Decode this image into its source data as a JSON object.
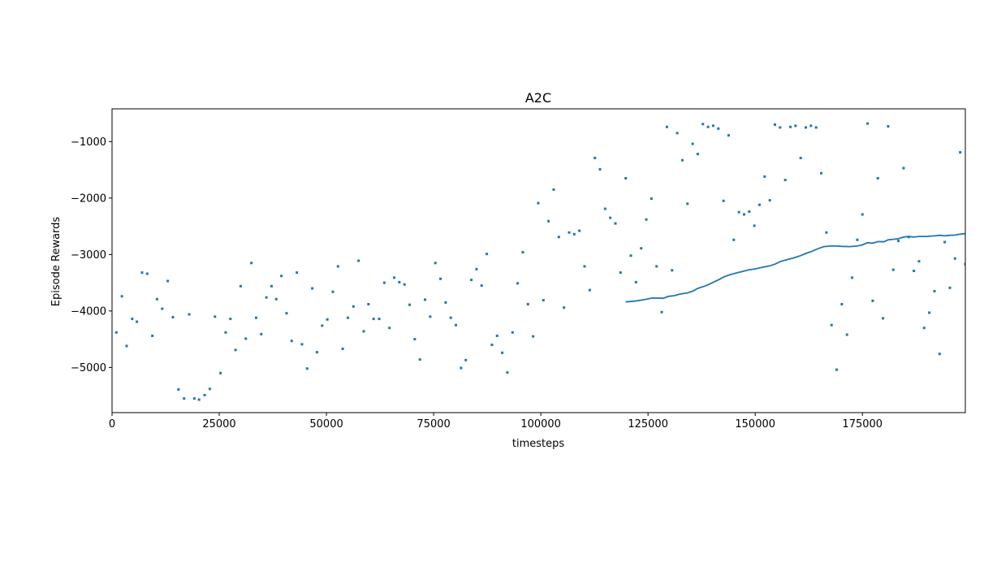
{
  "chart_data": {
    "type": "scatter",
    "title": "A2C",
    "xlabel": "timesteps",
    "ylabel": "Episode Rewards",
    "xlim": [
      0,
      199000
    ],
    "ylim": [
      -5800,
      -420
    ],
    "xticks": [
      0,
      25000,
      50000,
      75000,
      100000,
      125000,
      150000,
      175000
    ],
    "yticks": [
      -5000,
      -4000,
      -3000,
      -2000,
      -1000
    ],
    "xtick_labels": [
      "0",
      "25000",
      "50000",
      "75000",
      "100000",
      "125000",
      "150000",
      "175000"
    ],
    "ytick_labels": [
      "−5000",
      "−4000",
      "−3000",
      "−2000",
      "−1000"
    ],
    "grid": false,
    "color": "#1f77b4",
    "series": [
      {
        "kind": "scatter",
        "points": [
          [
            1000,
            -4380
          ],
          [
            2300,
            -3740
          ],
          [
            3400,
            -4620
          ],
          [
            4700,
            -4140
          ],
          [
            5800,
            -4190
          ],
          [
            7000,
            -3320
          ],
          [
            8200,
            -3340
          ],
          [
            9400,
            -4440
          ],
          [
            10500,
            -3790
          ],
          [
            11700,
            -3960
          ],
          [
            13000,
            -3470
          ],
          [
            14200,
            -4110
          ],
          [
            15500,
            -5390
          ],
          [
            16800,
            -5550
          ],
          [
            18000,
            -4060
          ],
          [
            19200,
            -5550
          ],
          [
            20300,
            -5570
          ],
          [
            21600,
            -5490
          ],
          [
            22800,
            -5380
          ],
          [
            24000,
            -4100
          ],
          [
            25300,
            -5100
          ],
          [
            26500,
            -4380
          ],
          [
            27600,
            -4140
          ],
          [
            28800,
            -4690
          ],
          [
            30000,
            -3560
          ],
          [
            31200,
            -4490
          ],
          [
            32500,
            -3150
          ],
          [
            33600,
            -4120
          ],
          [
            34800,
            -4410
          ],
          [
            36000,
            -3760
          ],
          [
            37200,
            -3560
          ],
          [
            38300,
            -3790
          ],
          [
            39500,
            -3380
          ],
          [
            40700,
            -4040
          ],
          [
            41900,
            -4530
          ],
          [
            43100,
            -3320
          ],
          [
            44300,
            -4590
          ],
          [
            45500,
            -5020
          ],
          [
            46700,
            -3600
          ],
          [
            47800,
            -4730
          ],
          [
            49000,
            -4260
          ],
          [
            50200,
            -4150
          ],
          [
            51500,
            -3660
          ],
          [
            52700,
            -3210
          ],
          [
            53800,
            -4670
          ],
          [
            55000,
            -4120
          ],
          [
            56300,
            -3920
          ],
          [
            57500,
            -3110
          ],
          [
            58700,
            -4360
          ],
          [
            59800,
            -3880
          ],
          [
            61000,
            -4140
          ],
          [
            62300,
            -4140
          ],
          [
            63500,
            -3500
          ],
          [
            64700,
            -4300
          ],
          [
            65800,
            -3410
          ],
          [
            67000,
            -3490
          ],
          [
            68200,
            -3530
          ],
          [
            69400,
            -3890
          ],
          [
            70600,
            -4500
          ],
          [
            71800,
            -4860
          ],
          [
            73000,
            -3800
          ],
          [
            74200,
            -4100
          ],
          [
            75400,
            -3150
          ],
          [
            76600,
            -3430
          ],
          [
            77800,
            -3850
          ],
          [
            79000,
            -4120
          ],
          [
            80200,
            -4250
          ],
          [
            81400,
            -5010
          ],
          [
            82500,
            -4870
          ],
          [
            83800,
            -3450
          ],
          [
            85000,
            -3260
          ],
          [
            86200,
            -3550
          ],
          [
            87400,
            -2990
          ],
          [
            88600,
            -4600
          ],
          [
            89800,
            -4440
          ],
          [
            91000,
            -4740
          ],
          [
            92200,
            -5090
          ],
          [
            93400,
            -4380
          ],
          [
            94600,
            -3510
          ],
          [
            95800,
            -2960
          ],
          [
            97000,
            -3880
          ],
          [
            98200,
            -4450
          ],
          [
            99400,
            -2090
          ],
          [
            100600,
            -3810
          ],
          [
            101800,
            -2410
          ],
          [
            103000,
            -1850
          ],
          [
            104200,
            -2690
          ],
          [
            105400,
            -3940
          ],
          [
            106600,
            -2610
          ],
          [
            107800,
            -2640
          ],
          [
            109000,
            -2580
          ],
          [
            110200,
            -3210
          ],
          [
            111400,
            -3630
          ],
          [
            112600,
            -1290
          ],
          [
            113800,
            -1490
          ],
          [
            115000,
            -2190
          ],
          [
            116200,
            -2350
          ],
          [
            117400,
            -2450
          ],
          [
            118600,
            -3320
          ],
          [
            119800,
            -1650
          ],
          [
            121000,
            -3020
          ],
          [
            122200,
            -3490
          ],
          [
            123400,
            -2890
          ],
          [
            124600,
            -2380
          ],
          [
            125800,
            -2010
          ],
          [
            127000,
            -3210
          ],
          [
            128200,
            -4020
          ],
          [
            129400,
            -740
          ],
          [
            130600,
            -3280
          ],
          [
            131800,
            -850
          ],
          [
            133000,
            -1330
          ],
          [
            134200,
            -2100
          ],
          [
            135400,
            -1040
          ],
          [
            136600,
            -1220
          ],
          [
            137800,
            -690
          ],
          [
            139000,
            -740
          ],
          [
            140200,
            -720
          ],
          [
            141400,
            -770
          ],
          [
            142600,
            -2050
          ],
          [
            143800,
            -890
          ],
          [
            145000,
            -2740
          ],
          [
            146200,
            -2250
          ],
          [
            147400,
            -2290
          ],
          [
            148600,
            -2240
          ],
          [
            149800,
            -2490
          ],
          [
            151000,
            -2120
          ],
          [
            152200,
            -1620
          ],
          [
            153400,
            -2040
          ],
          [
            154600,
            -700
          ],
          [
            155800,
            -750
          ],
          [
            157000,
            -1680
          ],
          [
            158200,
            -740
          ],
          [
            159400,
            -720
          ],
          [
            160600,
            -1290
          ],
          [
            161800,
            -750
          ],
          [
            163000,
            -720
          ],
          [
            164200,
            -750
          ],
          [
            165400,
            -1560
          ],
          [
            166600,
            -2610
          ],
          [
            167800,
            -4250
          ],
          [
            169000,
            -5040
          ],
          [
            170200,
            -3880
          ],
          [
            171400,
            -4420
          ],
          [
            172600,
            -3410
          ],
          [
            173800,
            -2740
          ],
          [
            175000,
            -2290
          ],
          [
            176200,
            -680
          ],
          [
            177400,
            -3820
          ],
          [
            178600,
            -1650
          ],
          [
            179800,
            -4130
          ],
          [
            181000,
            -730
          ],
          [
            182200,
            -3270
          ],
          [
            183400,
            -2760
          ],
          [
            184600,
            -1470
          ],
          [
            185800,
            -2690
          ],
          [
            187000,
            -3290
          ],
          [
            188200,
            -3120
          ],
          [
            189400,
            -4300
          ],
          [
            190600,
            -4030
          ],
          [
            191800,
            -3650
          ],
          [
            193000,
            -4760
          ],
          [
            194200,
            -2780
          ],
          [
            195400,
            -3590
          ],
          [
            196600,
            -3070
          ],
          [
            197800,
            -1190
          ],
          [
            199000,
            -3170
          ]
        ]
      },
      {
        "kind": "line",
        "points": [
          [
            119800,
            -3840
          ],
          [
            122000,
            -3825
          ],
          [
            124000,
            -3800
          ],
          [
            126000,
            -3770
          ],
          [
            128600,
            -3775
          ],
          [
            129800,
            -3740
          ],
          [
            131000,
            -3730
          ],
          [
            132500,
            -3700
          ],
          [
            134200,
            -3680
          ],
          [
            135400,
            -3650
          ],
          [
            136600,
            -3600
          ],
          [
            138600,
            -3550
          ],
          [
            140000,
            -3500
          ],
          [
            141400,
            -3450
          ],
          [
            142600,
            -3400
          ],
          [
            144000,
            -3360
          ],
          [
            145500,
            -3330
          ],
          [
            147000,
            -3300
          ],
          [
            148600,
            -3270
          ],
          [
            150000,
            -3255
          ],
          [
            151500,
            -3230
          ],
          [
            153400,
            -3200
          ],
          [
            154600,
            -3170
          ],
          [
            156000,
            -3120
          ],
          [
            157500,
            -3090
          ],
          [
            159000,
            -3060
          ],
          [
            160600,
            -3020
          ],
          [
            161800,
            -2980
          ],
          [
            163000,
            -2950
          ],
          [
            164500,
            -2900
          ],
          [
            166000,
            -2860
          ],
          [
            167800,
            -2850
          ],
          [
            169000,
            -2850
          ],
          [
            170200,
            -2855
          ],
          [
            172000,
            -2860
          ],
          [
            173800,
            -2850
          ],
          [
            175000,
            -2830
          ],
          [
            176200,
            -2790
          ],
          [
            177400,
            -2800
          ],
          [
            178600,
            -2770
          ],
          [
            180000,
            -2775
          ],
          [
            181000,
            -2740
          ],
          [
            182200,
            -2730
          ],
          [
            183400,
            -2720
          ],
          [
            184600,
            -2690
          ],
          [
            185800,
            -2680
          ],
          [
            187000,
            -2690
          ],
          [
            188200,
            -2680
          ],
          [
            190000,
            -2680
          ],
          [
            191800,
            -2670
          ],
          [
            193000,
            -2660
          ],
          [
            194200,
            -2670
          ],
          [
            195400,
            -2660
          ],
          [
            196600,
            -2655
          ],
          [
            197800,
            -2640
          ],
          [
            199000,
            -2630
          ]
        ]
      }
    ]
  }
}
